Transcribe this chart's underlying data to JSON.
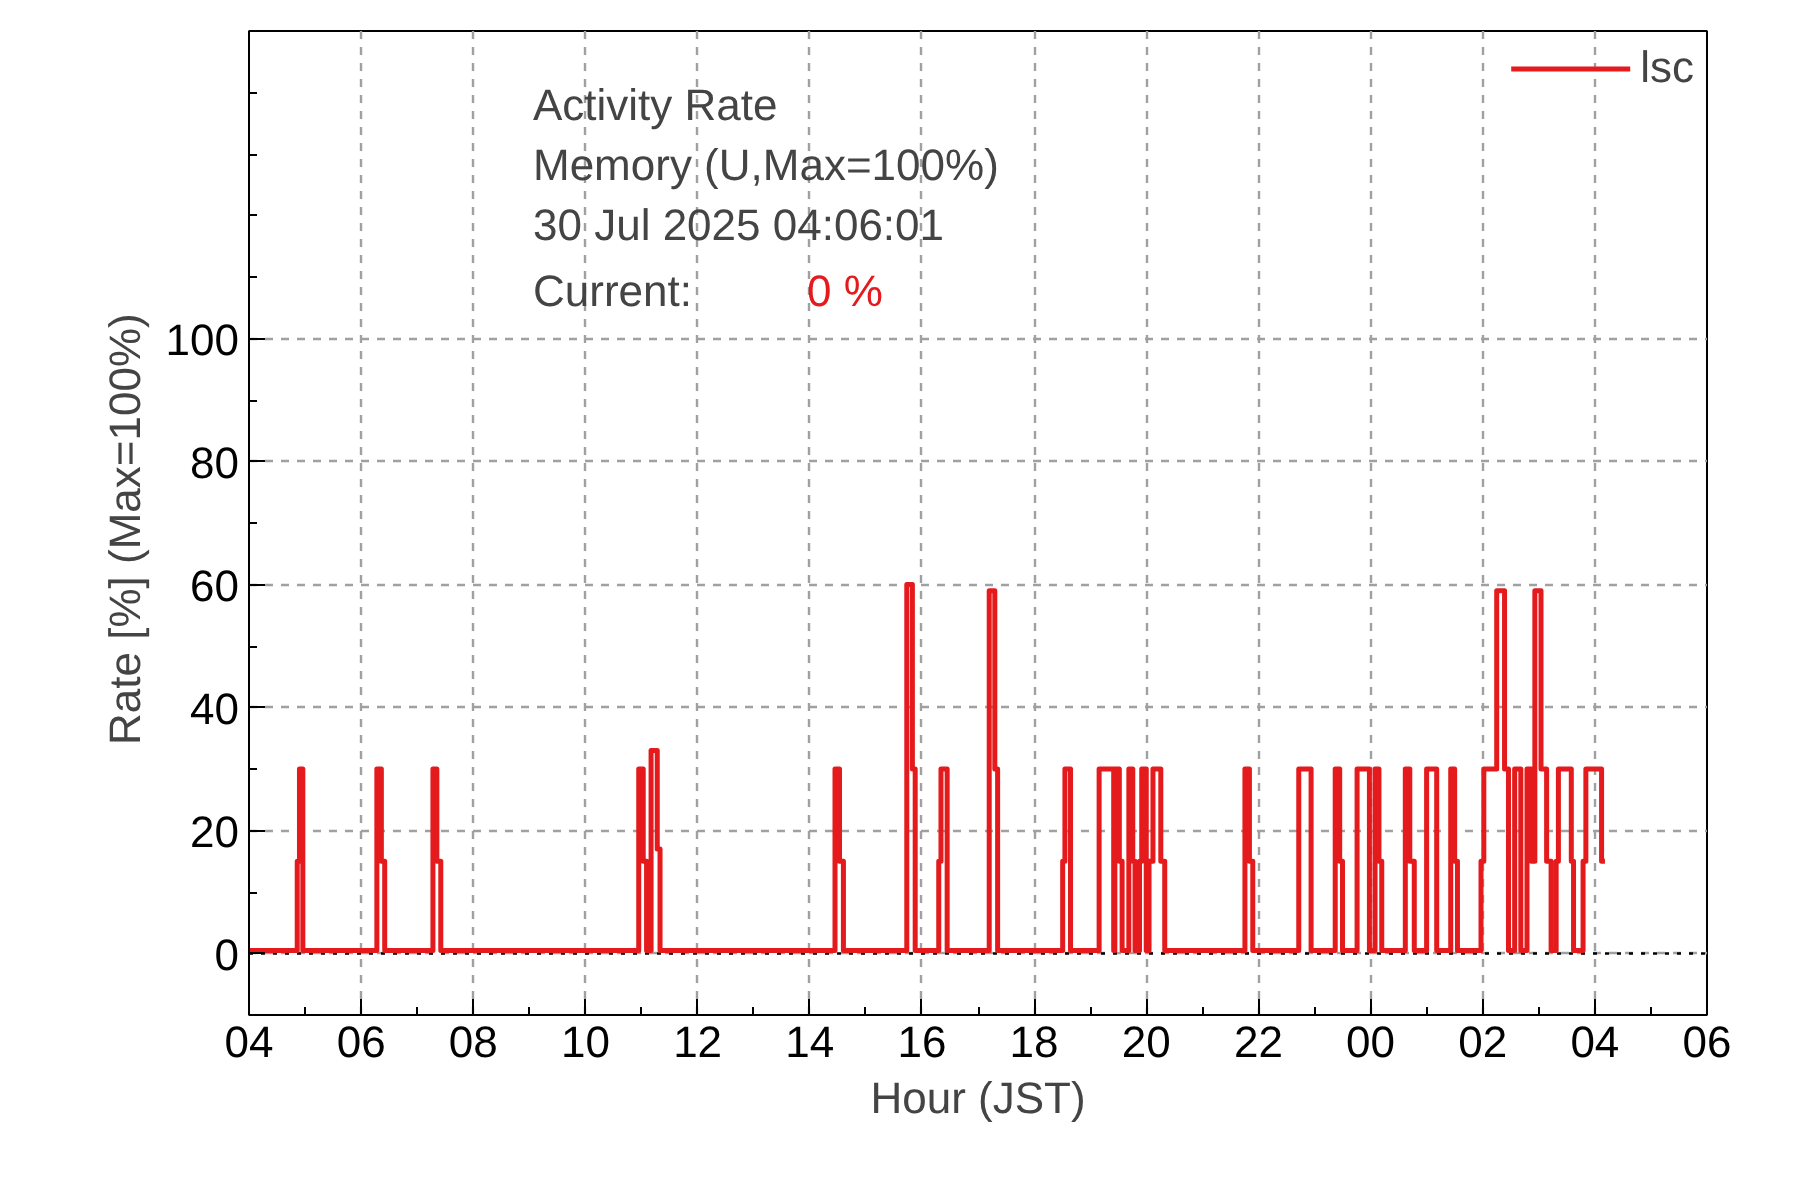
{
  "chart_data": {
    "type": "step",
    "title": "Activity Rate",
    "subtitle": "Memory (U,Max=100%)",
    "xlabel": "Hour (JST)",
    "ylabel": "Rate [%]  (Max=100%)",
    "annotations": [
      "30 Jul 2025 04:06:01",
      "Current:",
      "0 %"
    ],
    "series": [
      {
        "name": "lsc",
        "color": "#e41a1c",
        "x": [
          4.0,
          4.86,
          4.9,
          4.96,
          6.28,
          6.36,
          6.42,
          7.28,
          7.35,
          7.42,
          10.95,
          11.03,
          11.09,
          11.17,
          11.28,
          11.33,
          14.45,
          14.53,
          14.6,
          15.73,
          15.83,
          15.88,
          16.3,
          16.34,
          16.45,
          17.2,
          17.3,
          17.35,
          18.51,
          18.55,
          18.65,
          19.16,
          19.42,
          19.44,
          19.52,
          19.57,
          19.69,
          19.76,
          19.8,
          19.88,
          19.92,
          20.0,
          20.05,
          20.12,
          20.26,
          20.33,
          21.76,
          21.84,
          21.9,
          22.72,
          22.94,
          23.37,
          23.45,
          23.5,
          23.76,
          23.98,
          24.08,
          24.15,
          24.2,
          24.62,
          24.7,
          24.78,
          25.0,
          25.18,
          25.43,
          25.5,
          25.55,
          25.97,
          26.02,
          26.25,
          26.39,
          26.46,
          26.57,
          26.68,
          26.79,
          26.87,
          26.93,
          27.04,
          27.14,
          27.22,
          27.31,
          27.35,
          27.58,
          27.62,
          27.79,
          27.84,
          28.12,
          28.18
        ],
        "values": [
          0.5,
          15,
          30,
          0.5,
          30,
          15,
          0.5,
          30,
          15,
          0.5,
          30,
          15,
          0.5,
          33,
          17,
          0.5,
          30,
          15,
          0.5,
          60,
          30,
          0.5,
          15,
          30,
          0.5,
          59,
          30,
          0.5,
          15,
          30,
          0.5,
          30,
          0.5,
          30,
          15,
          0.5,
          30,
          15,
          0.5,
          15,
          30,
          0.5,
          15,
          30,
          15,
          0.5,
          30,
          15,
          0.5,
          30,
          0.5,
          30,
          15,
          0.5,
          30,
          0.5,
          30,
          15,
          0.5,
          30,
          15,
          0.5,
          30,
          0.5,
          30,
          15,
          0.5,
          15,
          30,
          59,
          30,
          0.5,
          30,
          0.5,
          30,
          15,
          59,
          30,
          15,
          0.5,
          15,
          30,
          15,
          0.5,
          15,
          30,
          15,
          15
        ]
      }
    ],
    "xlim": [
      4,
      30
    ],
    "xticks": [
      {
        "value": 4,
        "label": "04"
      },
      {
        "value": 6,
        "label": "06"
      },
      {
        "value": 8,
        "label": "08"
      },
      {
        "value": 10,
        "label": "10"
      },
      {
        "value": 12,
        "label": "12"
      },
      {
        "value": 14,
        "label": "14"
      },
      {
        "value": 16,
        "label": "16"
      },
      {
        "value": 18,
        "label": "18"
      },
      {
        "value": 20,
        "label": "20"
      },
      {
        "value": 22,
        "label": "22"
      },
      {
        "value": 24,
        "label": "00"
      },
      {
        "value": 26,
        "label": "02"
      },
      {
        "value": 28,
        "label": "04"
      },
      {
        "value": 30,
        "label": "06"
      }
    ],
    "ylim": [
      -10,
      150
    ],
    "yticks": [
      0,
      20,
      40,
      60,
      80,
      100
    ],
    "ref_lines": [
      {
        "axis": "y",
        "value": 0,
        "color": "#000000",
        "line_style": "dotted"
      }
    ],
    "grid": true,
    "legend": "top right"
  }
}
